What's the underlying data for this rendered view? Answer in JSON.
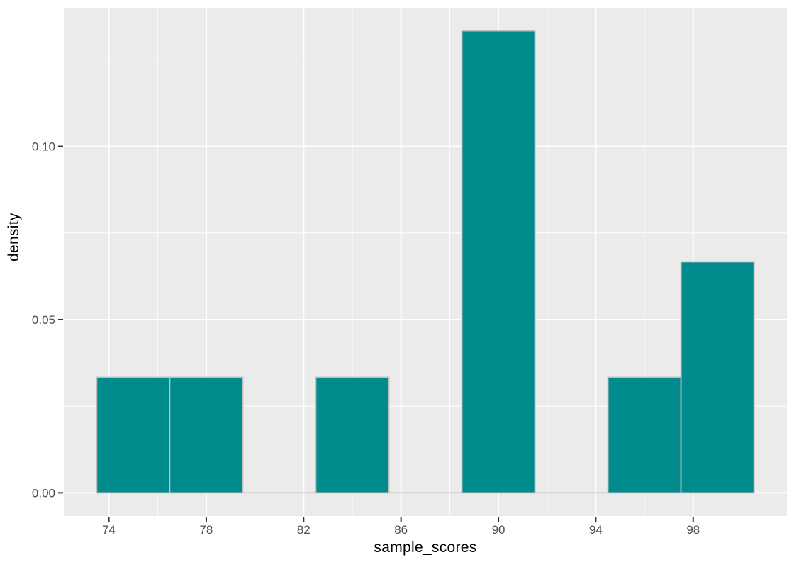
{
  "figure": {
    "xlabel": "sample_scores",
    "ylabel": "density"
  },
  "chart_data": {
    "type": "bar",
    "subtype": "histogram",
    "title": "",
    "xlabel": "sample_scores",
    "ylabel": "density",
    "grid": true,
    "legend": false,
    "xlim": [
      72.15,
      101.85
    ],
    "ylim": [
      -0.00667,
      0.14
    ],
    "binwidth": 3,
    "bins": [
      {
        "x0": 73.5,
        "x1": 76.5,
        "density": 0.03333
      },
      {
        "x0": 76.5,
        "x1": 79.5,
        "density": 0.03333
      },
      {
        "x0": 79.5,
        "x1": 82.5,
        "density": 0
      },
      {
        "x0": 82.5,
        "x1": 85.5,
        "density": 0.03333
      },
      {
        "x0": 85.5,
        "x1": 88.5,
        "density": 0
      },
      {
        "x0": 88.5,
        "x1": 91.5,
        "density": 0.13333
      },
      {
        "x0": 91.5,
        "x1": 94.5,
        "density": 0
      },
      {
        "x0": 94.5,
        "x1": 97.5,
        "density": 0.03333
      },
      {
        "x0": 97.5,
        "x1": 100.5,
        "density": 0.06667
      }
    ],
    "x_major_ticks": [
      {
        "value": 74,
        "label": "74"
      },
      {
        "value": 78,
        "label": "78"
      },
      {
        "value": 82,
        "label": "82"
      },
      {
        "value": 86,
        "label": "86"
      },
      {
        "value": 90,
        "label": "90"
      },
      {
        "value": 94,
        "label": "94"
      },
      {
        "value": 98,
        "label": "98"
      }
    ],
    "y_major_ticks": [
      {
        "value": 0.0,
        "label": "0.00"
      },
      {
        "value": 0.05,
        "label": "0.05"
      },
      {
        "value": 0.1,
        "label": "0.10"
      }
    ],
    "x_minor_ticks": [
      72,
      76,
      80,
      84,
      88,
      92,
      96,
      100
    ],
    "y_minor_ticks": [
      0.025,
      0.075,
      0.125
    ],
    "colors": {
      "panel_background": "#EBEBEB",
      "grid_major": "#FFFFFF",
      "grid_minor": "#FFFFFF",
      "bar_fill": "#008B8D",
      "bar_stroke": "#BEBEBE",
      "tick_mark": "#333333",
      "tick_label": "#4D4D4D",
      "axis_title": "#000000"
    }
  }
}
